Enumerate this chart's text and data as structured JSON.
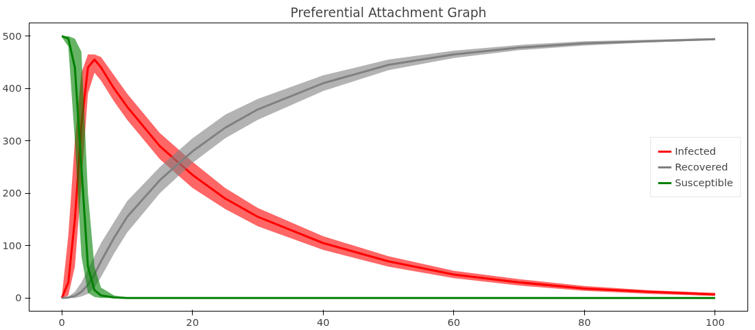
{
  "chart_data": {
    "type": "line",
    "title": "Preferential Attachment Graph",
    "x": [
      0,
      1,
      2,
      3,
      4,
      5,
      6,
      8,
      10,
      15,
      20,
      25,
      30,
      40,
      50,
      60,
      70,
      80,
      90,
      100
    ],
    "series": [
      {
        "name": "Infected",
        "color": "#ff0000",
        "values": [
          0,
          30,
          150,
          330,
          440,
          455,
          440,
          400,
          365,
          290,
          235,
          190,
          155,
          105,
          70,
          45,
          30,
          18,
          12,
          7
        ],
        "lower": [
          0,
          5,
          60,
          220,
          390,
          430,
          415,
          375,
          340,
          265,
          210,
          170,
          137,
          92,
          60,
          38,
          24,
          14,
          8,
          4
        ],
        "upper": [
          3,
          120,
          300,
          430,
          465,
          465,
          460,
          425,
          390,
          315,
          260,
          210,
          172,
          118,
          80,
          52,
          36,
          23,
          15,
          10
        ]
      },
      {
        "name": "Recovered",
        "color": "#808080",
        "values": [
          0,
          1,
          4,
          12,
          25,
          45,
          70,
          115,
          155,
          225,
          280,
          325,
          360,
          410,
          445,
          465,
          478,
          486,
          490,
          494
        ],
        "lower": [
          0,
          0,
          0,
          3,
          8,
          20,
          40,
          85,
          125,
          200,
          258,
          305,
          340,
          395,
          435,
          458,
          473,
          482,
          488,
          492
        ],
        "upper": [
          1,
          3,
          12,
          30,
          55,
          80,
          105,
          145,
          185,
          250,
          305,
          350,
          380,
          425,
          455,
          472,
          483,
          490,
          493,
          496
        ]
      },
      {
        "name": "Susceptible",
        "color": "#008000",
        "values": [
          500,
          495,
          440,
          250,
          60,
          15,
          5,
          1,
          0,
          0,
          0,
          0,
          0,
          0,
          0,
          0,
          0,
          0,
          0,
          0
        ],
        "lower": [
          498,
          480,
          300,
          80,
          10,
          2,
          0,
          0,
          0,
          0,
          0,
          0,
          0,
          0,
          0,
          0,
          0,
          0,
          0,
          0
        ],
        "upper": [
          500,
          500,
          495,
          470,
          200,
          60,
          20,
          5,
          1,
          0,
          0,
          0,
          0,
          0,
          0,
          0,
          0,
          0,
          0,
          0
        ]
      }
    ],
    "xlim": [
      -5,
      105
    ],
    "ylim": [
      -25,
      525
    ],
    "xticks": [
      0,
      20,
      40,
      60,
      80,
      100
    ],
    "yticks": [
      0,
      100,
      200,
      300,
      400,
      500
    ],
    "grid": false,
    "legend": "right",
    "line_style": "solid",
    "marker": "none"
  }
}
